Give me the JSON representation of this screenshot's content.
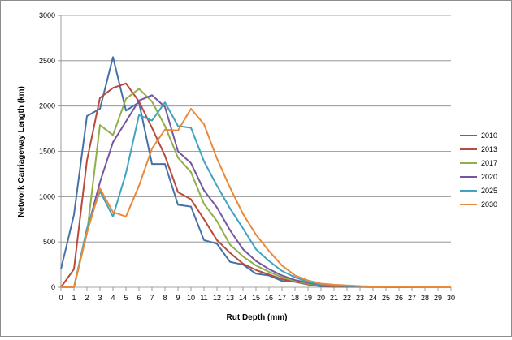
{
  "chart_data": {
    "type": "line",
    "title": "",
    "xlabel": "Rut Depth (mm)",
    "ylabel": "Network Carriageway Length (km)",
    "x": [
      0,
      1,
      2,
      3,
      4,
      5,
      6,
      7,
      8,
      9,
      10,
      11,
      12,
      13,
      14,
      15,
      16,
      17,
      18,
      19,
      20,
      21,
      22,
      23,
      24,
      25,
      26,
      27,
      28,
      29,
      30
    ],
    "xlim": [
      0,
      30
    ],
    "ylim": [
      0,
      3000
    ],
    "yticks": [
      0,
      500,
      1000,
      1500,
      2000,
      2500,
      3000
    ],
    "grid": "horizontal",
    "legend_position": "right",
    "series": [
      {
        "name": "2010",
        "color": "#4472A8",
        "values": [
          200,
          800,
          1890,
          1970,
          2540,
          1950,
          2040,
          1360,
          1360,
          910,
          890,
          520,
          480,
          280,
          250,
          150,
          130,
          70,
          60,
          30,
          10,
          5,
          5,
          3,
          2,
          2,
          1,
          1,
          1,
          0,
          0
        ]
      },
      {
        "name": "2013",
        "color": "#B84A3E",
        "values": [
          0,
          200,
          1400,
          2090,
          2200,
          2250,
          2050,
          1760,
          1450,
          1050,
          970,
          750,
          520,
          380,
          260,
          190,
          140,
          90,
          60,
          35,
          15,
          10,
          8,
          5,
          4,
          3,
          2,
          1,
          1,
          0,
          0
        ]
      },
      {
        "name": "2017",
        "color": "#8FAF4A",
        "values": [
          0,
          0,
          600,
          1790,
          1680,
          2080,
          2190,
          2050,
          1780,
          1430,
          1270,
          920,
          730,
          470,
          340,
          240,
          170,
          110,
          70,
          40,
          20,
          15,
          10,
          6,
          4,
          3,
          2,
          1,
          1,
          0,
          0
        ]
      },
      {
        "name": "2020",
        "color": "#7457A0",
        "values": [
          0,
          0,
          620,
          1160,
          1600,
          1830,
          2060,
          2120,
          1990,
          1500,
          1370,
          1070,
          880,
          630,
          420,
          290,
          200,
          130,
          80,
          50,
          25,
          18,
          12,
          8,
          5,
          3,
          2,
          1,
          1,
          0,
          0
        ]
      },
      {
        "name": "2025",
        "color": "#3FA4C0",
        "values": [
          0,
          0,
          650,
          1060,
          780,
          1260,
          1900,
          1840,
          2040,
          1780,
          1760,
          1390,
          1120,
          870,
          650,
          420,
          290,
          180,
          110,
          60,
          30,
          22,
          15,
          10,
          6,
          4,
          3,
          2,
          1,
          0,
          0
        ]
      },
      {
        "name": "2030",
        "color": "#E98A3A",
        "values": [
          0,
          0,
          600,
          1090,
          830,
          780,
          1120,
          1530,
          1740,
          1730,
          1970,
          1800,
          1420,
          1100,
          810,
          580,
          400,
          240,
          130,
          75,
          40,
          28,
          20,
          12,
          8,
          5,
          3,
          2,
          1,
          0,
          0
        ]
      }
    ]
  }
}
